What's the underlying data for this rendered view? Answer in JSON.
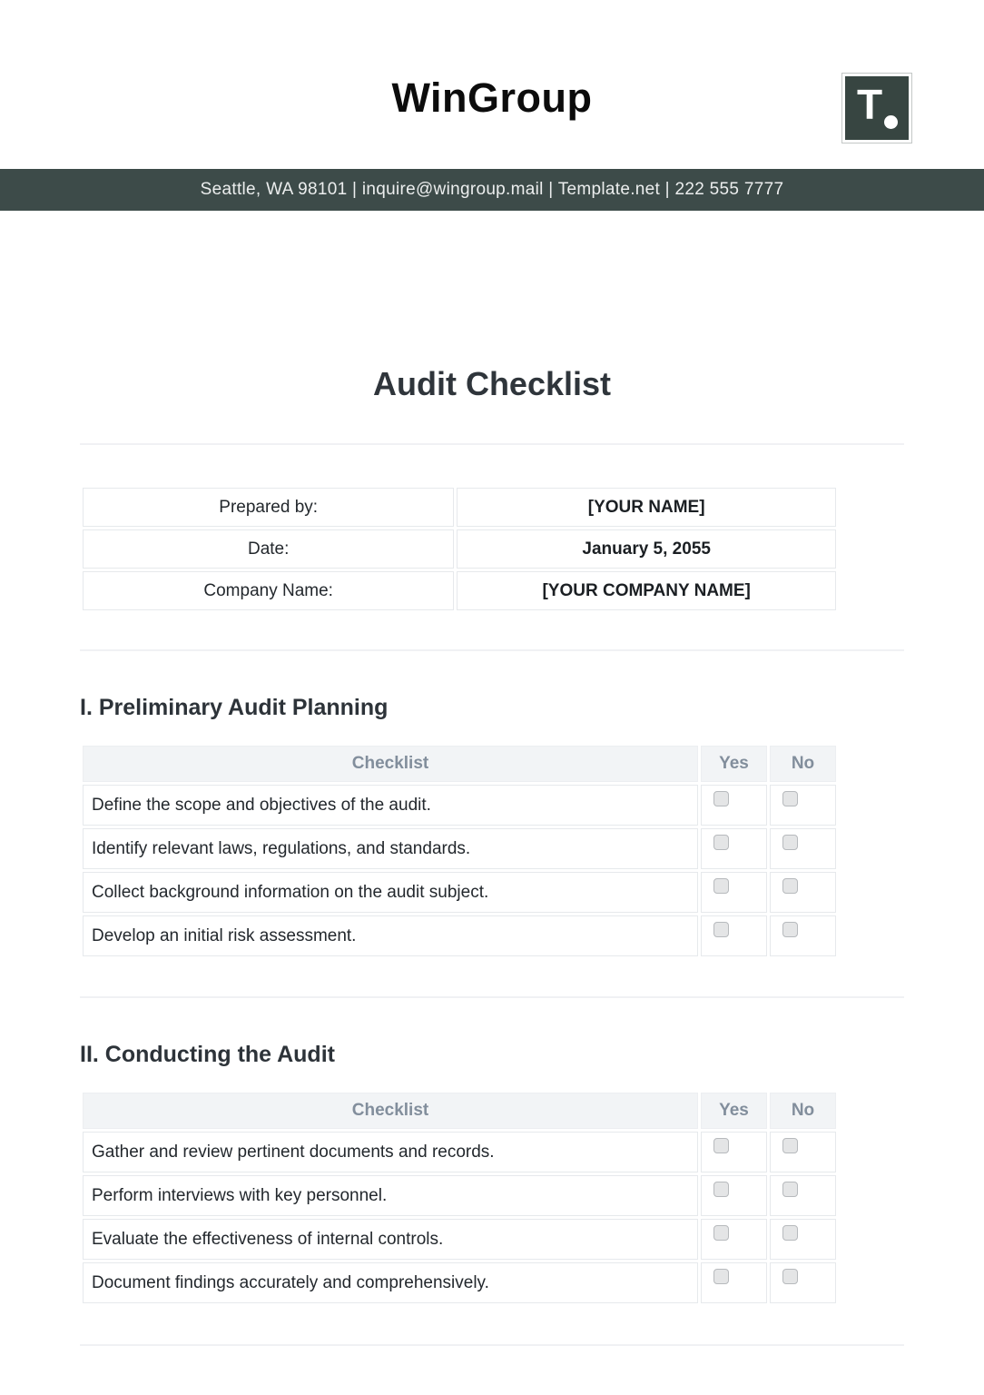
{
  "colors": {
    "bar_background": "#3d4b49",
    "logo_background": "#374541",
    "header_row_background": "#f2f4f6",
    "header_row_text": "#828e9c",
    "table_border": "#e6e9ec",
    "divider": "#f0f1f4",
    "checkbox_fill": "#e4e5e6",
    "checkbox_border": "#b7babd",
    "text": "#23282d"
  },
  "header": {
    "company_name": "WinGroup",
    "logo_letter": "T",
    "contact_line": "Seattle, WA 98101 | inquire@wingroup.mail | Template.net | 222 555 7777"
  },
  "document": {
    "title": "Audit Checklist",
    "info_table": {
      "rows": [
        {
          "label": "Prepared by:",
          "value": "[YOUR NAME]"
        },
        {
          "label": "Date:",
          "value": "January 5, 2055"
        },
        {
          "label": "Company Name:",
          "value": "[YOUR COMPANY NAME]"
        }
      ]
    },
    "sections": [
      {
        "heading": "I. Preliminary Audit Planning",
        "columns": {
          "checklist": "Checklist",
          "yes": "Yes",
          "no": "No"
        },
        "rows": [
          {
            "text": "Define the scope and objectives of the audit.",
            "yes_checked": false,
            "no_checked": false
          },
          {
            "text": "Identify relevant laws, regulations, and standards.",
            "yes_checked": false,
            "no_checked": false
          },
          {
            "text": "Collect background information on the audit subject.",
            "yes_checked": false,
            "no_checked": false
          },
          {
            "text": "Develop an initial risk assessment.",
            "yes_checked": false,
            "no_checked": false
          }
        ]
      },
      {
        "heading": "II. Conducting the Audit",
        "columns": {
          "checklist": "Checklist",
          "yes": "Yes",
          "no": "No"
        },
        "rows": [
          {
            "text": "Gather and review pertinent documents and records.",
            "yes_checked": false,
            "no_checked": false
          },
          {
            "text": "Perform interviews with key personnel.",
            "yes_checked": false,
            "no_checked": false
          },
          {
            "text": "Evaluate the effectiveness of internal controls.",
            "yes_checked": false,
            "no_checked": false
          },
          {
            "text": "Document findings accurately and comprehensively.",
            "yes_checked": false,
            "no_checked": false
          }
        ]
      }
    ]
  }
}
